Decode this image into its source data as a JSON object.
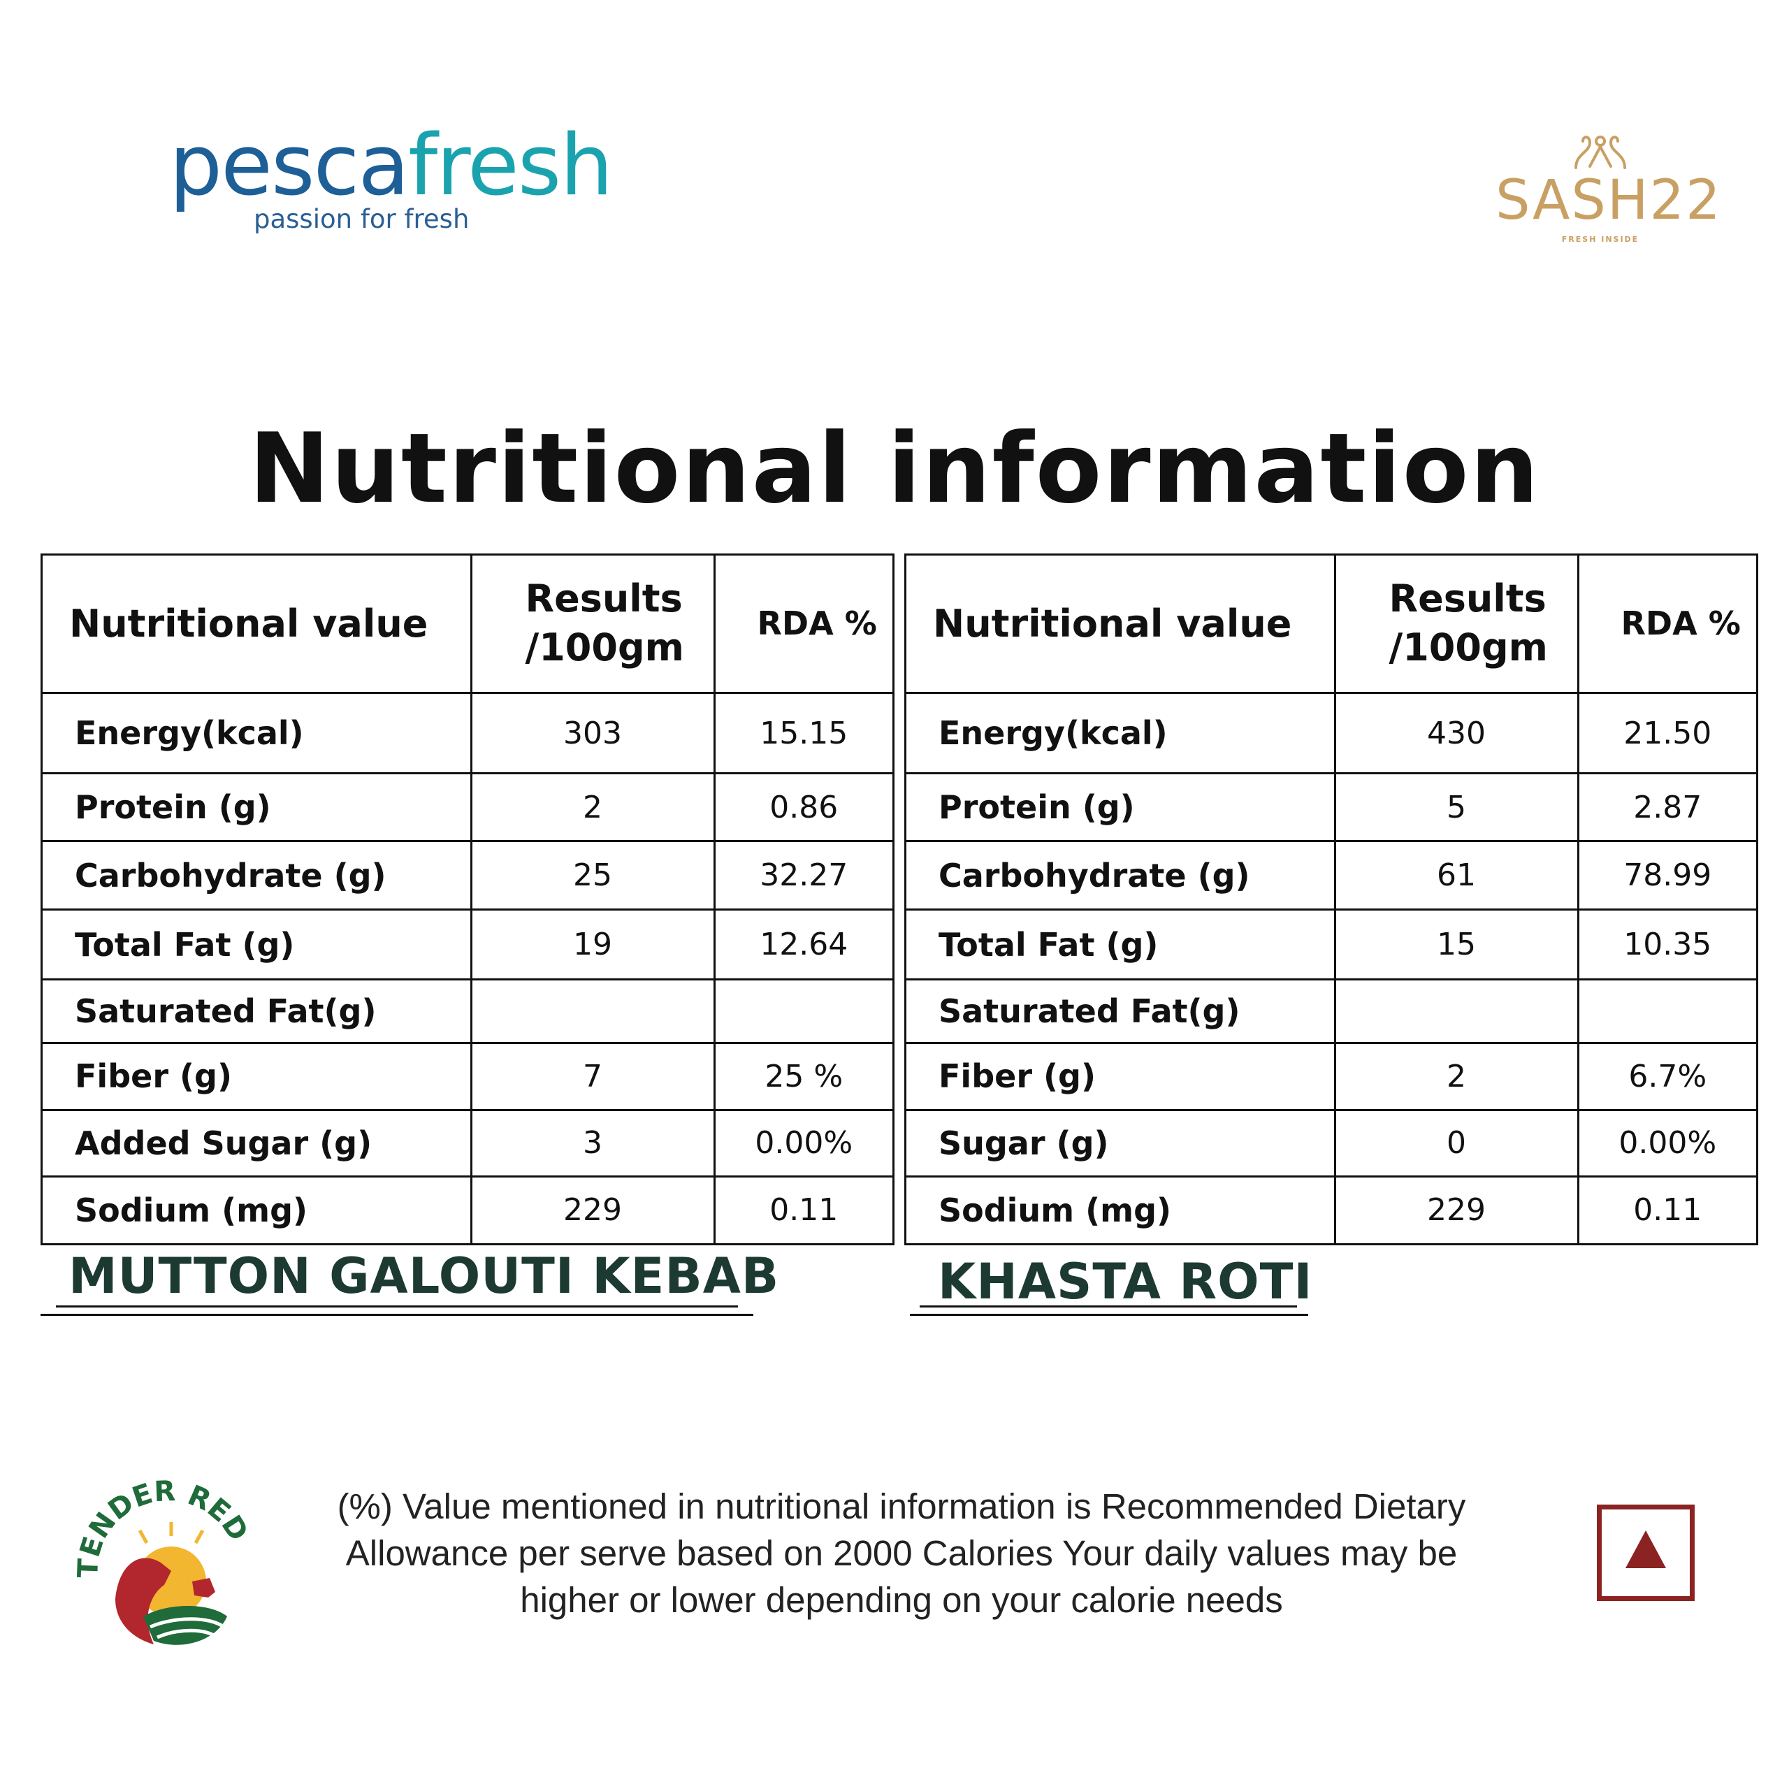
{
  "brands": {
    "pescafresh": {
      "name_a": "pesca",
      "name_b": "fresh",
      "tagline": "passion for fresh"
    },
    "sash22": {
      "name": "SASH22",
      "tagline": "FRESH INSIDE"
    },
    "tender_red": {
      "name": "TENDER RED"
    }
  },
  "title": "Nutritional information",
  "tables": [
    {
      "product": "MUTTON GALOUTI KEBAB",
      "headers": {
        "name": "Nutritional value",
        "results_line1": "Results",
        "results_line2": "/100gm",
        "rda": "RDA %"
      },
      "rows": [
        {
          "name": "Energy(kcal)",
          "result": "303",
          "rda": "15.15"
        },
        {
          "name": "Protein (g)",
          "result": "2",
          "rda": "0.86"
        },
        {
          "name": "Carbohydrate (g)",
          "result": "25",
          "rda": "32.27"
        },
        {
          "name": "Total Fat (g)",
          "result": "19",
          "rda": "12.64"
        },
        {
          "name": "Saturated Fat(g)",
          "result": "",
          "rda": ""
        },
        {
          "name": "Fiber (g)",
          "result": "7",
          "rda": "25 %"
        },
        {
          "name": "Added Sugar (g)",
          "result": "3",
          "rda": "0.00%"
        },
        {
          "name": "Sodium (mg)",
          "result": "229",
          "rda": "0.11"
        }
      ]
    },
    {
      "product": "KHASTA ROTI",
      "headers": {
        "name": "Nutritional value",
        "results_line1": "Results",
        "results_line2": "/100gm",
        "rda": "RDA %"
      },
      "rows": [
        {
          "name": "Energy(kcal)",
          "result": "430",
          "rda": "21.50"
        },
        {
          "name": "Protein (g)",
          "result": "5",
          "rda": "2.87"
        },
        {
          "name": "Carbohydrate (g)",
          "result": "61",
          "rda": "78.99"
        },
        {
          "name": "Total Fat (g)",
          "result": "15",
          "rda": "10.35"
        },
        {
          "name": "Saturated Fat(g)",
          "result": "",
          "rda": ""
        },
        {
          "name": "Fiber (g)",
          "result": "2",
          "rda": "6.7%"
        },
        {
          "name": "Sugar (g)",
          "result": "0",
          "rda": "0.00%"
        },
        {
          "name": "Sodium (mg)",
          "result": "229",
          "rda": "0.11"
        }
      ]
    }
  ],
  "footnote": {
    "line1": "(%) Value mentioned in nutritional information is Recommended Dietary",
    "line2": "Allowance per serve based on 2000 Calories  Your daily values may be",
    "line3": "higher or lower depending on your calorie needs"
  },
  "colors": {
    "pesca_dark": "#1d5f96",
    "pesca_teal": "#1aa3ae",
    "sash_gold": "#c9a063",
    "product_green": "#1c3a32",
    "tender_red": "#a52a2a",
    "box_red": "#8b2323"
  },
  "icons": [
    "triangle-up-icon"
  ]
}
